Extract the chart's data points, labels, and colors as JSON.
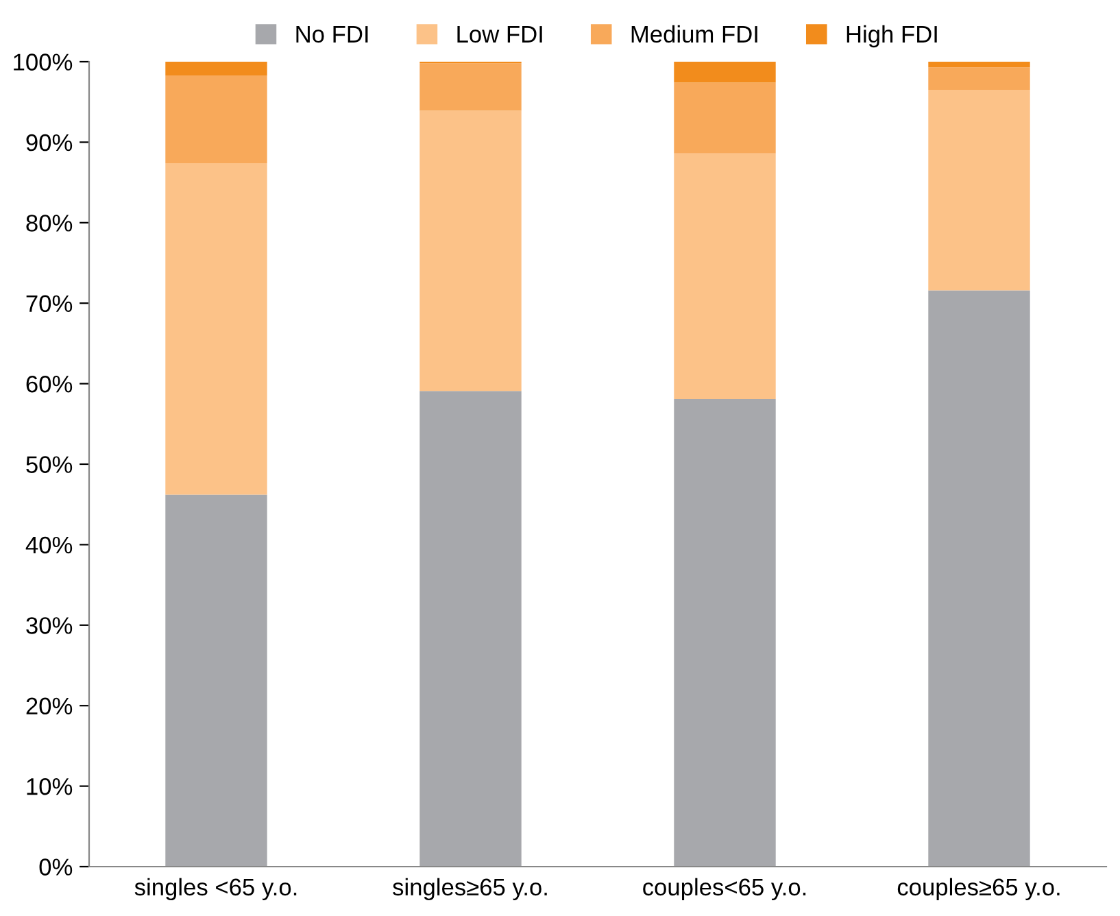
{
  "chart_data": {
    "type": "bar",
    "stacked": true,
    "categories": [
      "singles <65 y.o.",
      "singles≥65 y.o.",
      "couples<65 y.o.",
      "couples≥65 y.o."
    ],
    "series": [
      {
        "name": "No FDI",
        "color": "#a7a8ac",
        "values": [
          46.2,
          59.1,
          58.1,
          71.6
        ]
      },
      {
        "name": "Low FDI",
        "color": "#fcc288",
        "values": [
          41.2,
          34.8,
          30.5,
          24.9
        ]
      },
      {
        "name": "Medium FDI",
        "color": "#f8a95a",
        "values": [
          10.9,
          5.9,
          8.8,
          2.8
        ]
      },
      {
        "name": "High FDI",
        "color": "#f28c1c",
        "values": [
          1.7,
          0.2,
          2.6,
          0.7
        ]
      }
    ],
    "ylim": [
      0,
      100
    ],
    "yticks": [
      {
        "value": 0,
        "label": "0%"
      },
      {
        "value": 10,
        "label": "10%"
      },
      {
        "value": 20,
        "label": "20%"
      },
      {
        "value": 30,
        "label": "30%"
      },
      {
        "value": 40,
        "label": "40%"
      },
      {
        "value": 50,
        "label": "50%"
      },
      {
        "value": 60,
        "label": "60%"
      },
      {
        "value": 70,
        "label": "70%"
      },
      {
        "value": 80,
        "label": "80%"
      },
      {
        "value": 90,
        "label": "90%"
      },
      {
        "value": 100,
        "label": "100%"
      }
    ],
    "grid": false,
    "legend": "top"
  }
}
